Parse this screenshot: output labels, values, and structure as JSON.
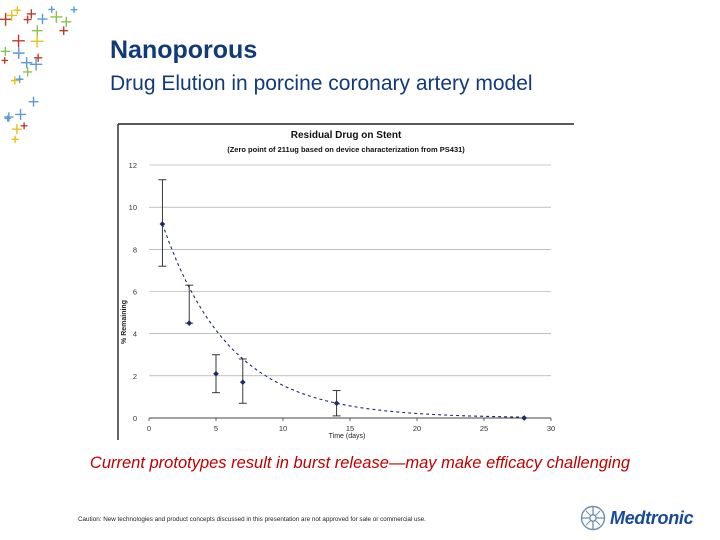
{
  "slide": {
    "title": "Nanoporous",
    "subtitle": "Drug Elution in porcine coronary artery model",
    "caption": "Current prototypes result in burst release—may make efficacy challenging",
    "footnote": "Caution: New technologies and product concepts discussed in this presentation are not approved for sale or commercial use.",
    "logo_text": "Medtronic",
    "icons": [
      "sparkle-pattern-icon",
      "medtronic-logo-icon"
    ]
  },
  "colors": {
    "title": "#123a7a",
    "caption": "#c00000",
    "series": "#1f2a6e",
    "deco_yellow": "#e8c11d",
    "deco_blue": "#5b9bd5",
    "deco_green": "#8bc34a",
    "deco_red": "#c0392b"
  },
  "chart_data": {
    "type": "scatter",
    "title": "Residual Drug on Stent",
    "subtitle": "(Zero point of 211ug based on device characterization from PS431)",
    "xlabel": "Time (days)",
    "ylabel": "% Remaining",
    "xlim": [
      0,
      30
    ],
    "ylim": [
      0,
      12
    ],
    "x_ticks": [
      0,
      5,
      10,
      15,
      20,
      25,
      30
    ],
    "y_ticks": [
      0,
      2,
      4,
      6,
      8,
      10,
      12
    ],
    "grid": true,
    "points": [
      {
        "x": 1,
        "y": 9.2,
        "err_low": 7.2,
        "err_high": 11.3
      },
      {
        "x": 3,
        "y": 4.5,
        "err_low": 4.5,
        "err_high": 6.3
      },
      {
        "x": 5,
        "y": 2.1,
        "err_low": 1.2,
        "err_high": 3.0
      },
      {
        "x": 7,
        "y": 1.7,
        "err_low": 0.7,
        "err_high": 2.8
      },
      {
        "x": 14,
        "y": 0.7,
        "err_low": 0.1,
        "err_high": 1.3
      },
      {
        "x": 28,
        "y": 0.0,
        "err_low": 0.0,
        "err_high": 0.0
      }
    ],
    "trendline": "exponential decay (dashed)"
  }
}
